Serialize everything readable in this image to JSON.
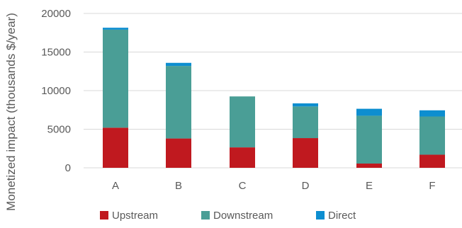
{
  "colors": {
    "upstream": "#c0191f",
    "downstream": "#4a9e96",
    "direct": "#0d8ed0",
    "grid": "#d9d9d9",
    "text": "#595959"
  },
  "chart_data": {
    "type": "bar",
    "stacked": true,
    "title": "",
    "xlabel": "",
    "ylabel": "Monetized impact (thousands $/year)",
    "ylim": [
      0,
      20000
    ],
    "yticks": [
      0,
      5000,
      10000,
      15000,
      20000
    ],
    "grid": true,
    "legend_position": "bottom",
    "categories": [
      "A",
      "B",
      "C",
      "D",
      "E",
      "F"
    ],
    "series": [
      {
        "name": "Upstream",
        "color": "#c0191f",
        "values": [
          5200,
          3800,
          2650,
          3850,
          550,
          1700
        ]
      },
      {
        "name": "Downstream",
        "color": "#4a9e96",
        "values": [
          12700,
          9400,
          6600,
          4100,
          6200,
          4950
        ]
      },
      {
        "name": "Direct",
        "color": "#0d8ed0",
        "values": [
          250,
          400,
          0,
          400,
          900,
          800
        ]
      }
    ]
  }
}
